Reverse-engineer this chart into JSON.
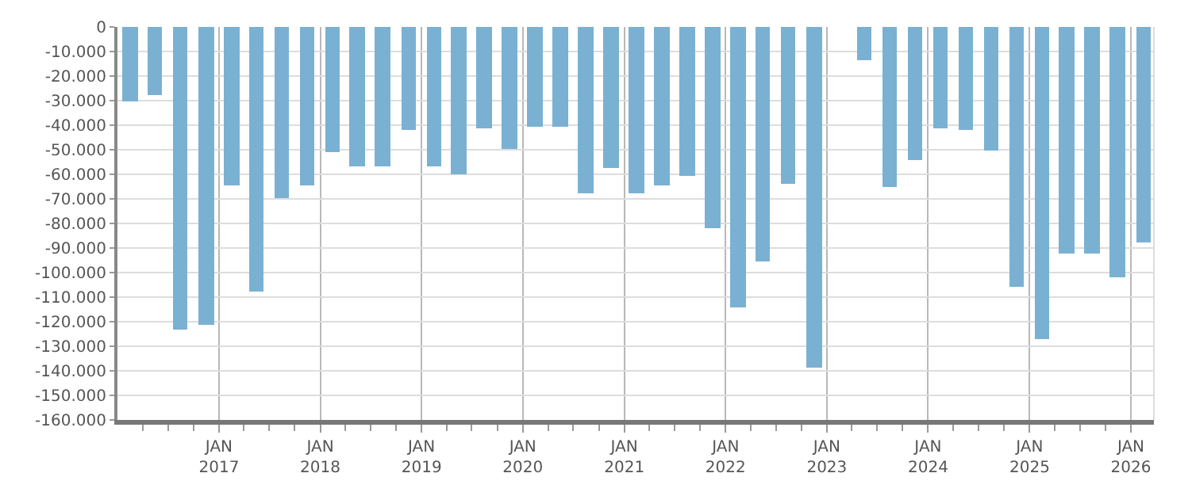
{
  "chart_data": {
    "type": "bar",
    "color": "#7ab1d3",
    "x": [
      "2016-02-15",
      "2016-05-15",
      "2016-08-15",
      "2016-11-15",
      "2017-02-15",
      "2017-05-15",
      "2017-08-15",
      "2017-11-15",
      "2018-02-15",
      "2018-05-15",
      "2018-08-15",
      "2018-11-15",
      "2019-02-15",
      "2019-05-15",
      "2019-08-15",
      "2019-11-15",
      "2020-02-15",
      "2020-05-15",
      "2020-08-15",
      "2020-11-15",
      "2021-02-15",
      "2021-05-15",
      "2021-08-15",
      "2021-11-15",
      "2022-02-15",
      "2022-05-15",
      "2022-08-15",
      "2022-11-15",
      "2023-02-15",
      "2023-05-15",
      "2023-08-15",
      "2023-11-15",
      "2024-02-15",
      "2024-05-15",
      "2024-08-15",
      "2024-11-15",
      "2025-02-15",
      "2025-05-15",
      "2025-08-15",
      "2025-11-15",
      "2026-02-15"
    ],
    "values": [
      -30000,
      -28000,
      -123500,
      -121000,
      -64500,
      -108000,
      -69500,
      -64500,
      -51000,
      -56500,
      -57000,
      -42000,
      -56500,
      -60000,
      -41000,
      -49500,
      -40500,
      -40500,
      -68000,
      -57500,
      -67500,
      -64500,
      -60500,
      -82000,
      -114000,
      -95500,
      -64000,
      -138500,
      null,
      -13500,
      -65000,
      -54500,
      -41500,
      -42000,
      -50500,
      -105500,
      -127000,
      -92500,
      -92500,
      -102000,
      -87500
    ],
    "xlim": [
      "2016-01-01",
      "2026-03-25"
    ],
    "xticks": [
      {
        "value": "2016-04-01",
        "label": null
      },
      {
        "value": "2016-07-01",
        "label": null
      },
      {
        "value": "2016-10-01",
        "label": null
      },
      {
        "value": "2017-01-01",
        "label": "JAN\n2017"
      },
      {
        "value": "2017-04-01",
        "label": null
      },
      {
        "value": "2017-07-01",
        "label": null
      },
      {
        "value": "2017-10-01",
        "label": null
      },
      {
        "value": "2018-01-01",
        "label": "JAN\n2018"
      },
      {
        "value": "2018-04-01",
        "label": null
      },
      {
        "value": "2018-07-01",
        "label": null
      },
      {
        "value": "2018-10-01",
        "label": null
      },
      {
        "value": "2019-01-01",
        "label": "JAN\n2019"
      },
      {
        "value": "2019-04-01",
        "label": null
      },
      {
        "value": "2019-07-01",
        "label": null
      },
      {
        "value": "2019-10-01",
        "label": null
      },
      {
        "value": "2020-01-01",
        "label": "JAN\n2020"
      },
      {
        "value": "2020-04-01",
        "label": null
      },
      {
        "value": "2020-07-01",
        "label": null
      },
      {
        "value": "2020-10-01",
        "label": null
      },
      {
        "value": "2021-01-01",
        "label": "JAN\n2021"
      },
      {
        "value": "2021-04-01",
        "label": null
      },
      {
        "value": "2021-07-01",
        "label": null
      },
      {
        "value": "2021-10-01",
        "label": null
      },
      {
        "value": "2022-01-01",
        "label": "JAN\n2022"
      },
      {
        "value": "2022-04-01",
        "label": null
      },
      {
        "value": "2022-07-01",
        "label": null
      },
      {
        "value": "2022-10-01",
        "label": null
      },
      {
        "value": "2023-01-01",
        "label": "JAN\n2023"
      },
      {
        "value": "2023-04-01",
        "label": null
      },
      {
        "value": "2023-07-01",
        "label": null
      },
      {
        "value": "2023-10-01",
        "label": null
      },
      {
        "value": "2024-01-01",
        "label": "JAN\n2024"
      },
      {
        "value": "2024-04-01",
        "label": null
      },
      {
        "value": "2024-07-01",
        "label": null
      },
      {
        "value": "2024-10-01",
        "label": null
      },
      {
        "value": "2025-01-01",
        "label": "JAN\n2025"
      },
      {
        "value": "2025-04-01",
        "label": null
      },
      {
        "value": "2025-07-01",
        "label": null
      },
      {
        "value": "2025-10-01",
        "label": null
      },
      {
        "value": "2026-01-01",
        "label": "JAN\n2026"
      }
    ],
    "ylim": [
      -160000,
      0
    ],
    "yticks": [
      0,
      {
        "value": -10000,
        "label": "-10.000"
      },
      {
        "value": -20000,
        "label": "-20.000"
      },
      {
        "value": -30000,
        "label": "-30.000"
      },
      {
        "value": -40000,
        "label": "-40.000"
      },
      {
        "value": -50000,
        "label": "-50.000"
      },
      {
        "value": -60000,
        "label": "-60.000"
      },
      {
        "value": -70000,
        "label": "-70.000"
      },
      {
        "value": -80000,
        "label": "-80.000"
      },
      {
        "value": -90000,
        "label": "-90.000"
      },
      {
        "value": -100000,
        "label": "-100.000"
      },
      {
        "value": -110000,
        "label": "-110.000"
      },
      {
        "value": -120000,
        "label": "-120.000"
      },
      {
        "value": -130000,
        "label": "-130.000"
      },
      {
        "value": -140000,
        "label": "-140.000"
      },
      {
        "value": -150000,
        "label": "-150.000"
      },
      {
        "value": -160000,
        "label": "-160.000"
      }
    ],
    "grid": true
  }
}
